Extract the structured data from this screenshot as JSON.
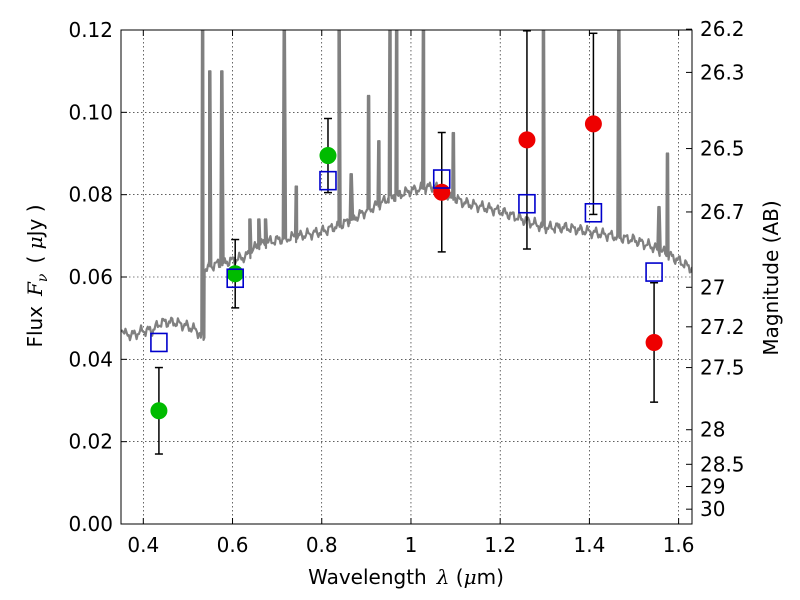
{
  "chart_data": {
    "type": "scatter",
    "xlabel": "Wavelength",
    "xlabel_symbol": "λ",
    "xlabel_unit_pre": " (",
    "xlabel_unit_mu": "μ",
    "xlabel_unit_post": "m)",
    "ylabel": "Flux",
    "ylabel_symbol_main": "F",
    "ylabel_symbol_sub": "ν",
    "ylabel_unit_pre": "( ",
    "ylabel_unit_mu": "μ",
    "ylabel_unit_post": "Jy )",
    "y2label": "Magnitude (AB)",
    "xlim": [
      0.35,
      1.63
    ],
    "ylim": [
      0.0,
      0.12
    ],
    "grid": true,
    "x_ticks": [
      {
        "value": 0.4,
        "label": "0.4"
      },
      {
        "value": 0.6,
        "label": "0.6"
      },
      {
        "value": 0.8,
        "label": "0.8"
      },
      {
        "value": 1.0,
        "label": "1"
      },
      {
        "value": 1.2,
        "label": "1.2"
      },
      {
        "value": 1.4,
        "label": "1.4"
      },
      {
        "value": 1.6,
        "label": "1.6"
      }
    ],
    "y_ticks": [
      {
        "value": 0.0,
        "label": "0.00"
      },
      {
        "value": 0.02,
        "label": "0.02"
      },
      {
        "value": 0.04,
        "label": "0.04"
      },
      {
        "value": 0.06,
        "label": "0.06"
      },
      {
        "value": 0.08,
        "label": "0.08"
      },
      {
        "value": 0.1,
        "label": "0.10"
      },
      {
        "value": 0.12,
        "label": "0.12"
      }
    ],
    "magnitude_ticks": [
      {
        "flux": 0.1202,
        "label": "26.2"
      },
      {
        "flux": 0.1097,
        "label": "26.3"
      },
      {
        "flux": 0.0912,
        "label": "26.5"
      },
      {
        "flux": 0.0758,
        "label": "26.7"
      },
      {
        "flux": 0.0575,
        "label": "27"
      },
      {
        "flux": 0.0479,
        "label": "27.2"
      },
      {
        "flux": 0.038,
        "label": "27.5"
      },
      {
        "flux": 0.0229,
        "label": "28"
      },
      {
        "flux": 0.0145,
        "label": "28.5"
      },
      {
        "flux": 0.0091,
        "label": "29"
      },
      {
        "flux": 0.0036,
        "label": "30"
      }
    ],
    "series": [
      {
        "name": "observed-green",
        "marker": "circle",
        "color": "#00bb00",
        "points": [
          {
            "x": 0.435,
            "y": 0.0275,
            "yerr_low": 0.0105,
            "yerr_high": 0.0105
          },
          {
            "x": 0.606,
            "y": 0.0608,
            "yerr_low": 0.0083,
            "yerr_high": 0.0083
          },
          {
            "x": 0.814,
            "y": 0.0895,
            "yerr_low": 0.009,
            "yerr_high": 0.009
          }
        ]
      },
      {
        "name": "observed-red",
        "marker": "circle",
        "color": "#ee0000",
        "points": [
          {
            "x": 1.069,
            "y": 0.0806,
            "yerr_low": 0.0145,
            "yerr_high": 0.0145
          },
          {
            "x": 1.26,
            "y": 0.0933,
            "yerr_low": 0.0265,
            "yerr_high": 0.0265
          },
          {
            "x": 1.409,
            "y": 0.0972,
            "yerr_low": 0.022,
            "yerr_high": 0.022
          },
          {
            "x": 1.545,
            "y": 0.0441,
            "yerr_low": 0.0145,
            "yerr_high": 0.0145
          }
        ]
      },
      {
        "name": "model-synthetic",
        "marker": "square",
        "color": "#0000cc",
        "points": [
          {
            "x": 0.435,
            "y": 0.0441
          },
          {
            "x": 0.606,
            "y": 0.0597
          },
          {
            "x": 0.814,
            "y": 0.0834
          },
          {
            "x": 1.069,
            "y": 0.0838
          },
          {
            "x": 1.26,
            "y": 0.0778
          },
          {
            "x": 1.409,
            "y": 0.0756
          },
          {
            "x": 1.545,
            "y": 0.0612
          }
        ]
      }
    ],
    "spectrum": {
      "name": "model-spectrum",
      "color": "#808080",
      "continuum": [
        [
          0.35,
          0.048
        ],
        [
          0.36,
          0.046
        ],
        [
          0.38,
          0.046
        ],
        [
          0.4,
          0.047
        ],
        [
          0.42,
          0.047
        ],
        [
          0.44,
          0.049
        ],
        [
          0.47,
          0.049
        ],
        [
          0.5,
          0.048
        ],
        [
          0.52,
          0.047
        ],
        [
          0.535,
          0.045
        ],
        [
          0.536,
          0.062
        ],
        [
          0.56,
          0.063
        ],
        [
          0.6,
          0.064
        ],
        [
          0.63,
          0.065
        ],
        [
          0.66,
          0.068
        ],
        [
          0.7,
          0.069
        ],
        [
          0.75,
          0.07
        ],
        [
          0.8,
          0.071
        ],
        [
          0.85,
          0.073
        ],
        [
          0.9,
          0.076
        ],
        [
          0.95,
          0.079
        ],
        [
          1.0,
          0.081
        ],
        [
          1.05,
          0.082
        ],
        [
          1.08,
          0.08
        ],
        [
          1.12,
          0.078
        ],
        [
          1.16,
          0.077
        ],
        [
          1.2,
          0.076
        ],
        [
          1.25,
          0.074
        ],
        [
          1.3,
          0.072
        ],
        [
          1.35,
          0.072
        ],
        [
          1.4,
          0.071
        ],
        [
          1.45,
          0.07
        ],
        [
          1.5,
          0.069
        ],
        [
          1.55,
          0.067
        ],
        [
          1.6,
          0.064
        ],
        [
          1.63,
          0.062
        ]
      ],
      "lines": [
        {
          "x": 0.533,
          "peak": 0.121
        },
        {
          "x": 0.549,
          "peak": 0.11
        },
        {
          "x": 0.576,
          "peak": 0.11
        },
        {
          "x": 0.639,
          "peak": 0.074
        },
        {
          "x": 0.659,
          "peak": 0.074
        },
        {
          "x": 0.674,
          "peak": 0.074
        },
        {
          "x": 0.716,
          "peak": 0.121
        },
        {
          "x": 0.743,
          "peak": 0.082
        },
        {
          "x": 0.839,
          "peak": 0.121
        },
        {
          "x": 0.866,
          "peak": 0.085
        },
        {
          "x": 0.905,
          "peak": 0.104
        },
        {
          "x": 0.928,
          "peak": 0.093
        },
        {
          "x": 0.953,
          "peak": 0.121
        },
        {
          "x": 0.968,
          "peak": 0.121
        },
        {
          "x": 1.028,
          "peak": 0.121
        },
        {
          "x": 1.095,
          "peak": 0.095
        },
        {
          "x": 1.297,
          "peak": 0.121
        },
        {
          "x": 1.327,
          "peak": 0.073
        },
        {
          "x": 1.466,
          "peak": 0.121
        },
        {
          "x": 1.556,
          "peak": 0.077
        },
        {
          "x": 1.575,
          "peak": 0.09
        }
      ]
    }
  }
}
